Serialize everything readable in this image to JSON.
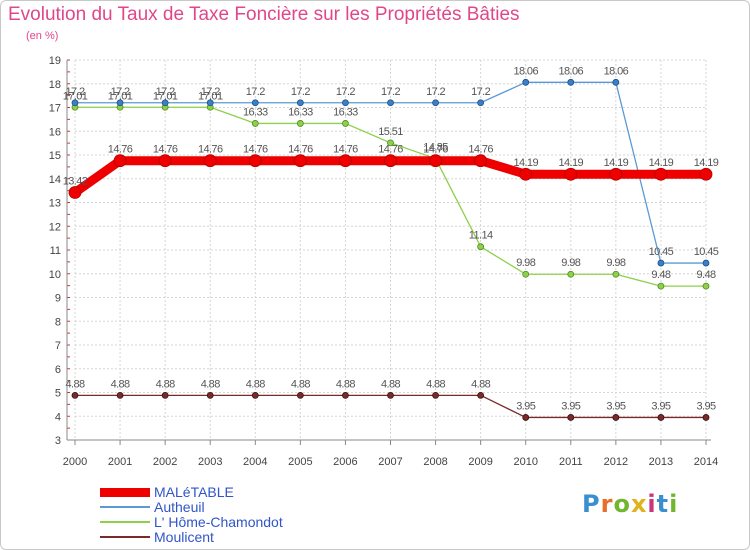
{
  "header": {
    "title": "Evolution du Taux de Taxe Foncière sur les Propriétés Bâties",
    "unit": "(en %)"
  },
  "logo": {
    "text": "Proxiti"
  },
  "chart_data": {
    "type": "line",
    "title": "Evolution du Taux de Taxe Foncière sur les Propriétés Bâties",
    "ylabel": "(en %)",
    "xlabel": "",
    "ylim": [
      3,
      19
    ],
    "yticks": [
      3,
      4,
      5,
      6,
      7,
      8,
      9,
      10,
      11,
      12,
      13,
      14,
      15,
      16,
      17,
      18,
      19
    ],
    "x": [
      "2000",
      "2001",
      "2002",
      "2003",
      "2004",
      "2005",
      "2006",
      "2007",
      "2008",
      "2009",
      "2010",
      "2011",
      "2012",
      "2013",
      "2014"
    ],
    "grid": true,
    "legend_position": "bottom-left",
    "series": [
      {
        "name": "MALéTABLE",
        "color": "#ee0000",
        "values": [
          13.42,
          14.76,
          14.76,
          14.76,
          14.76,
          14.76,
          14.76,
          14.76,
          14.76,
          14.76,
          14.19,
          14.19,
          14.19,
          14.19,
          14.19
        ],
        "labels": [
          "13.42",
          "14.76",
          "14.76",
          "14.76",
          "14.76",
          "14.76",
          "14.76",
          "14.76",
          "14.76",
          "14.76",
          "14.19",
          "14.19",
          "14.19",
          "14.19",
          "14.19"
        ]
      },
      {
        "name": "Autheuil",
        "color": "#5b9bd5",
        "values": [
          17.2,
          17.2,
          17.2,
          17.2,
          17.2,
          17.2,
          17.2,
          17.2,
          17.2,
          17.2,
          18.06,
          18.06,
          18.06,
          10.45,
          10.45
        ],
        "labels": [
          "17.2",
          "17.2",
          "17.2",
          "17.2",
          "17.2",
          "17.2",
          "17.2",
          "17.2",
          "17.2",
          "17.2",
          "18.06",
          "18.06",
          "18.06",
          "10.45",
          "10.45"
        ]
      },
      {
        "name": "L' Hôme-Chamondot",
        "color": "#8ed04a",
        "values": [
          17.01,
          17.01,
          17.01,
          17.01,
          16.33,
          16.33,
          16.33,
          15.51,
          14.85,
          11.14,
          9.98,
          9.98,
          9.98,
          9.48,
          9.48
        ],
        "labels": [
          "17.01",
          "17.01",
          "17.01",
          "17.01",
          "16.33",
          "16.33",
          "16.33",
          "15.51",
          "14.85",
          "11.14",
          "9.98",
          "9.98",
          "9.98",
          "9.48",
          "9.48"
        ]
      },
      {
        "name": "Moulicent",
        "color": "#7a2a2a",
        "values": [
          4.88,
          4.88,
          4.88,
          4.88,
          4.88,
          4.88,
          4.88,
          4.88,
          4.88,
          4.88,
          3.95,
          3.95,
          3.95,
          3.95,
          3.95
        ],
        "labels": [
          "4.88",
          "4.88",
          "4.88",
          "4.88",
          "4.88",
          "4.88",
          "4.88",
          "4.88",
          "4.88",
          "4.88",
          "3.95",
          "3.95",
          "3.95",
          "3.95",
          "3.95"
        ]
      }
    ]
  }
}
